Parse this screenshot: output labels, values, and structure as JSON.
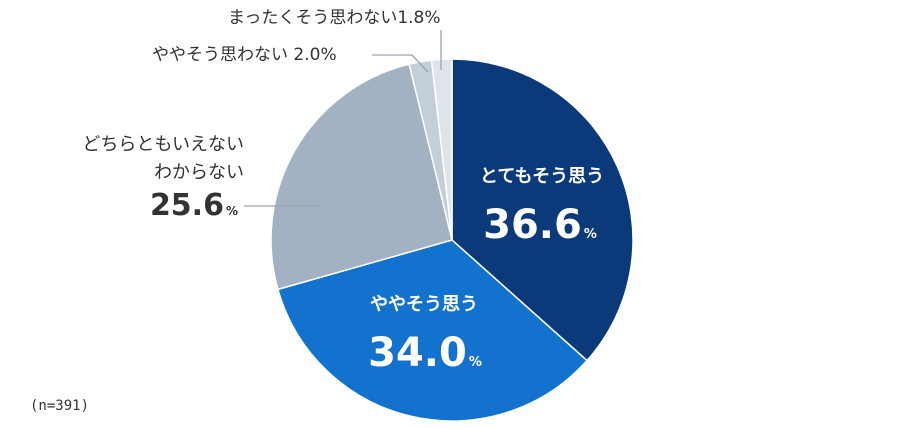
{
  "chart_data": {
    "type": "pie",
    "unit": "%",
    "start_angle_deg": 0,
    "direction": "clockwise",
    "slices": [
      {
        "label": "とてもそう思う",
        "value": 36.6,
        "display": "36.6",
        "color": "#0b3a7a"
      },
      {
        "label": "ややそう思う",
        "value": 34.0,
        "display": "34.0",
        "color": "#1472cf"
      },
      {
        "label_lines": [
          "どちらともいえない",
          "わからない"
        ],
        "value": 25.6,
        "display": "25.6",
        "color": "#a2b2c2"
      },
      {
        "label": "ややそう思わない",
        "value": 2.0,
        "display": "2.0",
        "color": "#c4ced8"
      },
      {
        "label": "まったくそう思わない",
        "value": 1.8,
        "display": "1.8",
        "color": "#dfe4ea"
      }
    ]
  },
  "note": "(n=391)"
}
